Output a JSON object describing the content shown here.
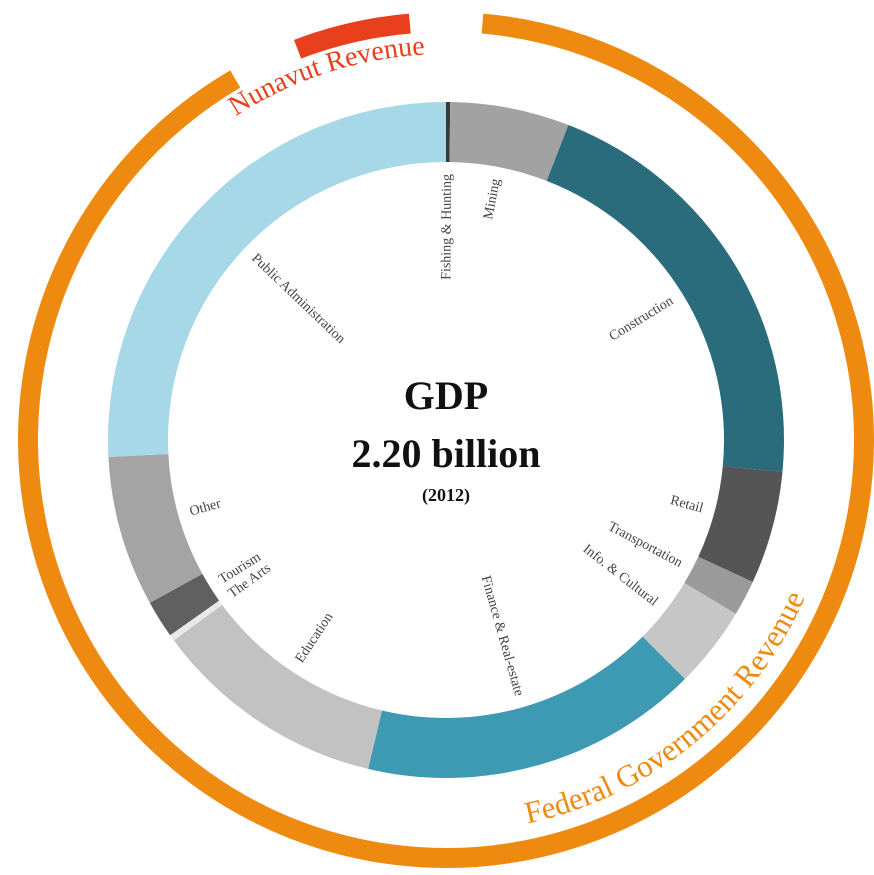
{
  "chart_data": {
    "type": "donut",
    "title": "GDP",
    "subtitle": "2.20 billion",
    "note": "(2012)",
    "categories": [
      "Fishing & Hunting",
      "Mining",
      "Construction",
      "Retail",
      "Transportation",
      "Info. & Cultural",
      "Finance & Real-estate",
      "Education",
      "The Arts",
      "Tourism",
      "Other",
      "Public Administration"
    ],
    "values": [
      0.2,
      5.7,
      20.6,
      5.4,
      1.7,
      3.9,
      16.2,
      11.2,
      0.3,
      1.8,
      7.2,
      25.8
    ],
    "colors": [
      "#3a3a3a",
      "#a2a2a2",
      "#2a6b7c",
      "#555555",
      "#9a9a9a",
      "#c6c6c6",
      "#3d9ab2",
      "#c2c2c2",
      "#e8e8e8",
      "#606060",
      "#a4a4a4",
      "#a7d8e8"
    ],
    "revenue": [
      {
        "name": "Federal Government Revenue",
        "color": "#ee8a10",
        "value": 90.2
      },
      {
        "name": "Nunavut Revenue",
        "color": "#e8401c",
        "value": 4.4
      }
    ]
  }
}
